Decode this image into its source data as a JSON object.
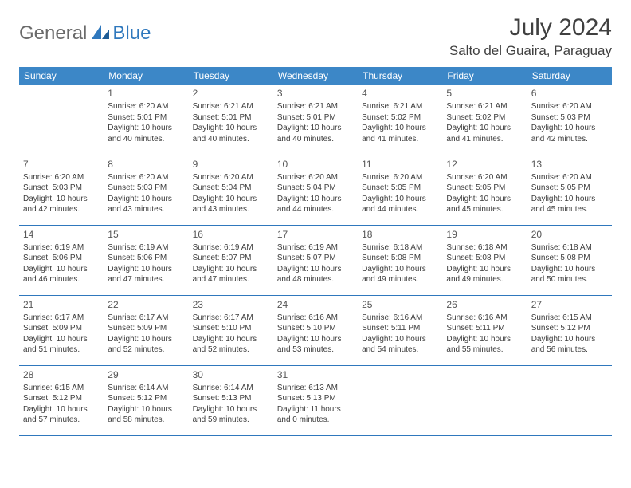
{
  "logo": {
    "part1": "General",
    "part2": "Blue"
  },
  "title": "July 2024",
  "location": "Salto del Guaira, Paraguay",
  "colors": {
    "header_bg": "#3c87c7",
    "header_text": "#ffffff",
    "border": "#2f78bd",
    "text": "#3d3d3d",
    "title_text": "#404040",
    "logo_gray": "#6a6a6a",
    "logo_blue": "#2f78bd"
  },
  "dayHeaders": [
    "Sunday",
    "Monday",
    "Tuesday",
    "Wednesday",
    "Thursday",
    "Friday",
    "Saturday"
  ],
  "weeks": [
    [
      null,
      {
        "n": "1",
        "sr": "Sunrise: 6:20 AM",
        "ss": "Sunset: 5:01 PM",
        "d1": "Daylight: 10 hours",
        "d2": "and 40 minutes."
      },
      {
        "n": "2",
        "sr": "Sunrise: 6:21 AM",
        "ss": "Sunset: 5:01 PM",
        "d1": "Daylight: 10 hours",
        "d2": "and 40 minutes."
      },
      {
        "n": "3",
        "sr": "Sunrise: 6:21 AM",
        "ss": "Sunset: 5:01 PM",
        "d1": "Daylight: 10 hours",
        "d2": "and 40 minutes."
      },
      {
        "n": "4",
        "sr": "Sunrise: 6:21 AM",
        "ss": "Sunset: 5:02 PM",
        "d1": "Daylight: 10 hours",
        "d2": "and 41 minutes."
      },
      {
        "n": "5",
        "sr": "Sunrise: 6:21 AM",
        "ss": "Sunset: 5:02 PM",
        "d1": "Daylight: 10 hours",
        "d2": "and 41 minutes."
      },
      {
        "n": "6",
        "sr": "Sunrise: 6:20 AM",
        "ss": "Sunset: 5:03 PM",
        "d1": "Daylight: 10 hours",
        "d2": "and 42 minutes."
      }
    ],
    [
      {
        "n": "7",
        "sr": "Sunrise: 6:20 AM",
        "ss": "Sunset: 5:03 PM",
        "d1": "Daylight: 10 hours",
        "d2": "and 42 minutes."
      },
      {
        "n": "8",
        "sr": "Sunrise: 6:20 AM",
        "ss": "Sunset: 5:03 PM",
        "d1": "Daylight: 10 hours",
        "d2": "and 43 minutes."
      },
      {
        "n": "9",
        "sr": "Sunrise: 6:20 AM",
        "ss": "Sunset: 5:04 PM",
        "d1": "Daylight: 10 hours",
        "d2": "and 43 minutes."
      },
      {
        "n": "10",
        "sr": "Sunrise: 6:20 AM",
        "ss": "Sunset: 5:04 PM",
        "d1": "Daylight: 10 hours",
        "d2": "and 44 minutes."
      },
      {
        "n": "11",
        "sr": "Sunrise: 6:20 AM",
        "ss": "Sunset: 5:05 PM",
        "d1": "Daylight: 10 hours",
        "d2": "and 44 minutes."
      },
      {
        "n": "12",
        "sr": "Sunrise: 6:20 AM",
        "ss": "Sunset: 5:05 PM",
        "d1": "Daylight: 10 hours",
        "d2": "and 45 minutes."
      },
      {
        "n": "13",
        "sr": "Sunrise: 6:20 AM",
        "ss": "Sunset: 5:05 PM",
        "d1": "Daylight: 10 hours",
        "d2": "and 45 minutes."
      }
    ],
    [
      {
        "n": "14",
        "sr": "Sunrise: 6:19 AM",
        "ss": "Sunset: 5:06 PM",
        "d1": "Daylight: 10 hours",
        "d2": "and 46 minutes."
      },
      {
        "n": "15",
        "sr": "Sunrise: 6:19 AM",
        "ss": "Sunset: 5:06 PM",
        "d1": "Daylight: 10 hours",
        "d2": "and 47 minutes."
      },
      {
        "n": "16",
        "sr": "Sunrise: 6:19 AM",
        "ss": "Sunset: 5:07 PM",
        "d1": "Daylight: 10 hours",
        "d2": "and 47 minutes."
      },
      {
        "n": "17",
        "sr": "Sunrise: 6:19 AM",
        "ss": "Sunset: 5:07 PM",
        "d1": "Daylight: 10 hours",
        "d2": "and 48 minutes."
      },
      {
        "n": "18",
        "sr": "Sunrise: 6:18 AM",
        "ss": "Sunset: 5:08 PM",
        "d1": "Daylight: 10 hours",
        "d2": "and 49 minutes."
      },
      {
        "n": "19",
        "sr": "Sunrise: 6:18 AM",
        "ss": "Sunset: 5:08 PM",
        "d1": "Daylight: 10 hours",
        "d2": "and 49 minutes."
      },
      {
        "n": "20",
        "sr": "Sunrise: 6:18 AM",
        "ss": "Sunset: 5:08 PM",
        "d1": "Daylight: 10 hours",
        "d2": "and 50 minutes."
      }
    ],
    [
      {
        "n": "21",
        "sr": "Sunrise: 6:17 AM",
        "ss": "Sunset: 5:09 PM",
        "d1": "Daylight: 10 hours",
        "d2": "and 51 minutes."
      },
      {
        "n": "22",
        "sr": "Sunrise: 6:17 AM",
        "ss": "Sunset: 5:09 PM",
        "d1": "Daylight: 10 hours",
        "d2": "and 52 minutes."
      },
      {
        "n": "23",
        "sr": "Sunrise: 6:17 AM",
        "ss": "Sunset: 5:10 PM",
        "d1": "Daylight: 10 hours",
        "d2": "and 52 minutes."
      },
      {
        "n": "24",
        "sr": "Sunrise: 6:16 AM",
        "ss": "Sunset: 5:10 PM",
        "d1": "Daylight: 10 hours",
        "d2": "and 53 minutes."
      },
      {
        "n": "25",
        "sr": "Sunrise: 6:16 AM",
        "ss": "Sunset: 5:11 PM",
        "d1": "Daylight: 10 hours",
        "d2": "and 54 minutes."
      },
      {
        "n": "26",
        "sr": "Sunrise: 6:16 AM",
        "ss": "Sunset: 5:11 PM",
        "d1": "Daylight: 10 hours",
        "d2": "and 55 minutes."
      },
      {
        "n": "27",
        "sr": "Sunrise: 6:15 AM",
        "ss": "Sunset: 5:12 PM",
        "d1": "Daylight: 10 hours",
        "d2": "and 56 minutes."
      }
    ],
    [
      {
        "n": "28",
        "sr": "Sunrise: 6:15 AM",
        "ss": "Sunset: 5:12 PM",
        "d1": "Daylight: 10 hours",
        "d2": "and 57 minutes."
      },
      {
        "n": "29",
        "sr": "Sunrise: 6:14 AM",
        "ss": "Sunset: 5:12 PM",
        "d1": "Daylight: 10 hours",
        "d2": "and 58 minutes."
      },
      {
        "n": "30",
        "sr": "Sunrise: 6:14 AM",
        "ss": "Sunset: 5:13 PM",
        "d1": "Daylight: 10 hours",
        "d2": "and 59 minutes."
      },
      {
        "n": "31",
        "sr": "Sunrise: 6:13 AM",
        "ss": "Sunset: 5:13 PM",
        "d1": "Daylight: 11 hours",
        "d2": "and 0 minutes."
      },
      null,
      null,
      null
    ]
  ]
}
